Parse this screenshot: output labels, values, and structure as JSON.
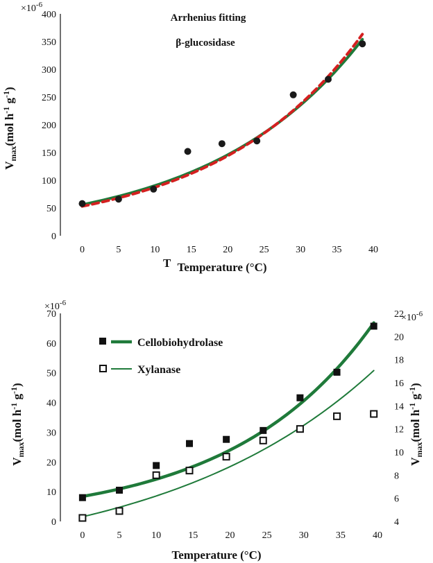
{
  "chart_data": [
    {
      "type": "scatter",
      "title": "Arrhenius fitting",
      "subtitle": "β-glucosidase",
      "xlabel": "Temperature (°C)",
      "xlabel_prefix": "T",
      "ylabel_main": "V",
      "ylabel_sub": "max",
      "ylabel_unit": "(mol h",
      "ylabel_sup1": "-1",
      "ylabel_mid": " g",
      "ylabel_sup2": "-1",
      "ylabel_end": ")",
      "y_multiplier": "×10",
      "y_multiplier_exp": "-6",
      "xlim": [
        -3,
        40
      ],
      "ylim": [
        0,
        400
      ],
      "xticks": [
        "0",
        "5",
        "10",
        "15",
        "20",
        "25",
        "30",
        "35",
        "40"
      ],
      "yticks": [
        "0",
        "50",
        "100",
        "150",
        "200",
        "250",
        "300",
        "350",
        "400"
      ],
      "series": [
        {
          "name": "β-glucosidase data",
          "marker": "filled-circle",
          "x": [
            0,
            5,
            9.8,
            14.5,
            19.2,
            24,
            29,
            33.8,
            38.5
          ],
          "y": [
            58,
            66,
            84,
            152,
            166,
            171,
            254,
            282,
            346
          ]
        }
      ],
      "fits": [
        {
          "name": "fit green",
          "color": "#1f7a3a",
          "style": "solid",
          "a": 56.0,
          "k": 0.0479,
          "x0": 0,
          "x1": 38.5
        },
        {
          "name": "fit red",
          "color": "#d42020",
          "style": "dashed",
          "a": 53.0,
          "k": 0.05,
          "x0": 0,
          "x1": 38.5
        }
      ]
    },
    {
      "type": "scatter",
      "xlabel": "Temperature (°C)",
      "ylabel_main": "V",
      "ylabel_sub": "max",
      "ylabel_unit": "(mol h",
      "ylabel_sup1": "-1",
      "ylabel_mid": " g",
      "ylabel_sup2": "-1",
      "ylabel_end": ")",
      "y_multiplier": "×10",
      "y_multiplier_exp": "-6",
      "y2_multiplier": "×10",
      "y2_multiplier_exp": "-6",
      "xlim": [
        -3,
        40
      ],
      "ylim": [
        0,
        70
      ],
      "y2lim": [
        4,
        22
      ],
      "xticks": [
        "0",
        "5",
        "10",
        "15",
        "20",
        "25",
        "30",
        "35",
        "40"
      ],
      "yticks": [
        "0",
        "10",
        "20",
        "30",
        "40",
        "50",
        "60",
        "70"
      ],
      "y2ticks": [
        "4",
        "6",
        "8",
        "10",
        "12",
        "14",
        "16",
        "18",
        "20",
        "22"
      ],
      "series": [
        {
          "name": "Cellobiohydrolase",
          "axis": "left",
          "marker": "filled-square",
          "x": [
            0,
            5,
            10,
            14.5,
            19.5,
            24.5,
            29.5,
            34.5,
            39.5
          ],
          "y": [
            8,
            10.5,
            18.8,
            26.2,
            27.6,
            30.6,
            41.6,
            50.2,
            65.7
          ]
        },
        {
          "name": "Xylanase",
          "axis": "right",
          "marker": "open-square",
          "x": [
            0,
            5,
            10,
            14.5,
            19.5,
            24.5,
            29.5,
            34.5,
            39.5
          ],
          "y": [
            4.3,
            4.9,
            8.0,
            8.4,
            9.6,
            11.0,
            12.0,
            13.1,
            13.3
          ]
        }
      ],
      "fits": [
        {
          "name": "Cellobiohydrolase fit",
          "axis": "left",
          "color": "#1f7a3a",
          "width": 4.5,
          "a": 8.4,
          "k": 0.0525,
          "x0": 0,
          "x1": 39.5
        },
        {
          "name": "Xylanase fit",
          "axis": "right",
          "color": "#1f7a3a",
          "width": 2,
          "a": 4.4,
          "k": 0.0343,
          "x0": 0,
          "x1": 39.5
        }
      ],
      "legend": [
        "Cellobiohydrolase",
        "Xylanase"
      ]
    }
  ]
}
